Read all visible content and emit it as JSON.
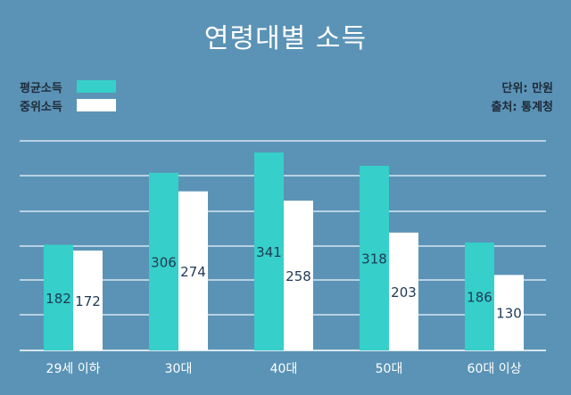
{
  "chart_data": {
    "type": "bar",
    "title": "연령대별 소득",
    "categories": [
      "29세 이하",
      "30대",
      "40대",
      "50대",
      "60대 이상"
    ],
    "series": [
      {
        "name": "평균소득",
        "values": [
          182,
          306,
          341,
          318,
          186
        ],
        "color": "#36cfc9"
      },
      {
        "name": "중위소득",
        "values": [
          172,
          274,
          258,
          203,
          130
        ],
        "color": "#ffffff"
      }
    ],
    "ylim": [
      0,
      400
    ],
    "grid": true,
    "legend_position": "top-left"
  },
  "notes": {
    "unit": "단위: 만원",
    "source": "출처: 통계청"
  },
  "colors": {
    "background": "#5b93b6",
    "gridline": "#d6e6f0",
    "label_text": "#1e3a55"
  }
}
